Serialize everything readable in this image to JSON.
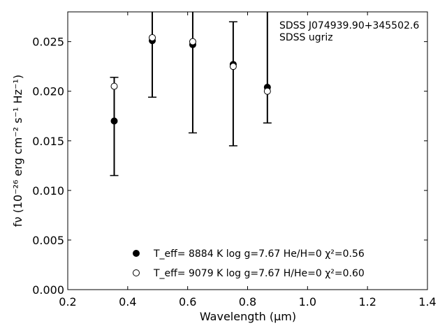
{
  "chart_data": {
    "type": "scatter",
    "annotations": [
      "SDSS J074939.90+345502.6",
      "SDSS ugriz"
    ],
    "xlabel": "Wavelength (μm)",
    "ylabel": "fν (10⁻²⁶ erg cm⁻² s⁻¹ Hz⁻¹)",
    "xlim": [
      0.2,
      1.4
    ],
    "ylim": [
      0.0,
      0.028
    ],
    "x_ticks": [
      "0.2",
      "0.4",
      "0.6",
      "0.8",
      "1.0",
      "1.2",
      "1.4"
    ],
    "y_ticks": [
      "0.000",
      "0.005",
      "0.010",
      "0.015",
      "0.020",
      "0.025"
    ],
    "grid": false,
    "legend_position": "bottom-center",
    "series": [
      {
        "name": "T_eff=  8884 K  log g=7.67  He/H=0  χ²=0.56",
        "marker": "filled-circle",
        "color": "#000000",
        "points": [
          {
            "x": 0.355,
            "y": 0.017
          },
          {
            "x": 0.482,
            "y": 0.0251
          },
          {
            "x": 0.617,
            "y": 0.0247
          },
          {
            "x": 0.752,
            "y": 0.0227
          },
          {
            "x": 0.866,
            "y": 0.0204
          }
        ]
      },
      {
        "name": "T_eff=  9079 K  log g=7.67  H/He=0  χ²=0.60",
        "marker": "open-circle",
        "color": "#000000",
        "points": [
          {
            "x": 0.355,
            "y": 0.0205
          },
          {
            "x": 0.482,
            "y": 0.0254
          },
          {
            "x": 0.617,
            "y": 0.025
          },
          {
            "x": 0.752,
            "y": 0.0225
          },
          {
            "x": 0.866,
            "y": 0.02
          }
        ]
      }
    ],
    "observations": {
      "name": "SDSS ugriz",
      "points": [
        {
          "x": 0.355,
          "y": 0.0165,
          "yerr_low": 0.0115,
          "yerr_high": 0.0214
        },
        {
          "x": 0.482,
          "y": 0.025,
          "yerr_low": 0.0194,
          "yerr_high": 0.0306
        },
        {
          "x": 0.617,
          "y": 0.0246,
          "yerr_low": 0.0158,
          "yerr_high": 0.0334
        },
        {
          "x": 0.752,
          "y": 0.0208,
          "yerr_low": 0.0145,
          "yerr_high": 0.027
        },
        {
          "x": 0.866,
          "y": 0.023,
          "yerr_low": 0.0168,
          "yerr_high": 0.0292
        }
      ]
    }
  }
}
